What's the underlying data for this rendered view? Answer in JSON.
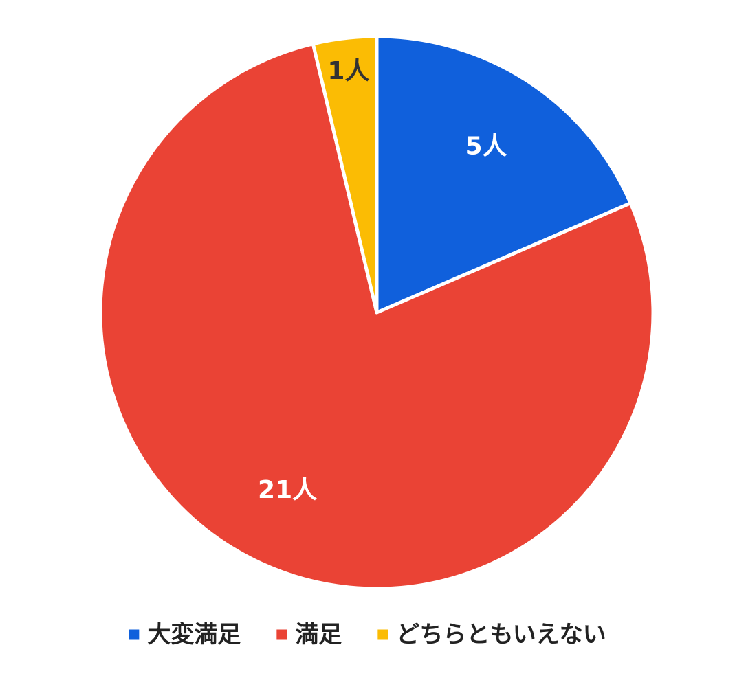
{
  "chart_data": {
    "type": "pie",
    "title": "",
    "categories": [
      "大変満足",
      "満足",
      "どちらともいえない"
    ],
    "values": [
      5,
      21,
      1
    ],
    "unit": "人",
    "data_labels": [
      "5人",
      "21人",
      "1人"
    ],
    "colors": [
      "#1060DC",
      "#EA4335",
      "#FBBC04"
    ],
    "label_colors": [
      "#ffffff",
      "#ffffff",
      "#333333"
    ],
    "start": "top",
    "direction": "clockwise",
    "legend": {
      "placement": "bottom",
      "entries": [
        "大変満足",
        "満足",
        "どちらともいえない"
      ]
    }
  }
}
